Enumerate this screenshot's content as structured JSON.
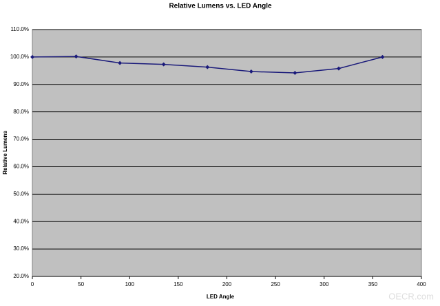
{
  "chart_data": {
    "type": "line",
    "title": "Relative Lumens vs. LED Angle",
    "x_label": "LED Angle",
    "y_label": "Relative Lumens",
    "x": [
      0,
      45,
      90,
      135,
      180,
      225,
      270,
      315,
      360
    ],
    "series": [
      {
        "name": "Relative Lumens",
        "color": "#1a1a7a",
        "values": [
          100,
          100.2,
          97.8,
          97.3,
          96.3,
          94.7,
          94.2,
          95.8,
          100
        ]
      }
    ],
    "xlim": [
      0,
      400
    ],
    "xticks": [
      0,
      50,
      100,
      150,
      200,
      250,
      300,
      350,
      400
    ],
    "ylim": [
      20,
      110
    ],
    "yticks": [
      {
        "value": 20,
        "label": "20.0%"
      },
      {
        "value": 30,
        "label": "30.0%"
      },
      {
        "value": 40,
        "label": "40.0%"
      },
      {
        "value": 50,
        "label": "50.0%"
      },
      {
        "value": 60,
        "label": "60.0%"
      },
      {
        "value": 70,
        "label": "70.0%"
      },
      {
        "value": 80,
        "label": "80.0%"
      },
      {
        "value": 90,
        "label": "90.0%"
      },
      {
        "value": 100,
        "label": "100.0%"
      },
      {
        "value": 110,
        "label": "110.0%"
      }
    ],
    "grid": true,
    "plot_background": "#c0c0c0"
  },
  "watermark": "OECR.com"
}
